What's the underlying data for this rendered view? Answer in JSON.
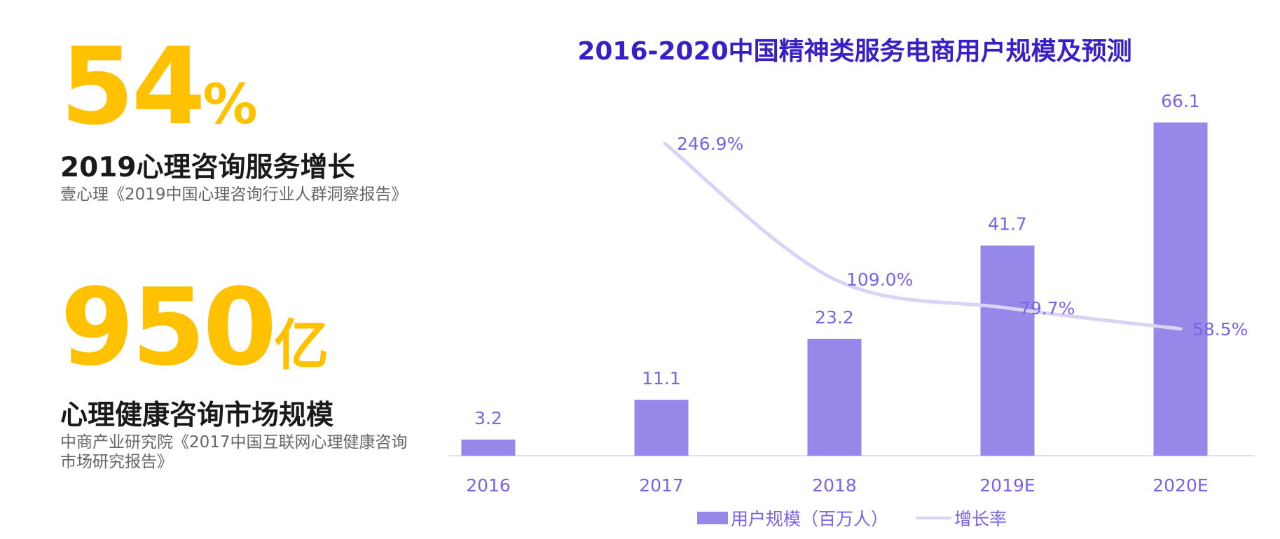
{
  "stats": [
    {
      "value": "54",
      "unit": "%",
      "title": "2019心理咨询服务增长",
      "source": "壹心理《2019中国心理咨询行业人群洞察报告》"
    },
    {
      "value": "950",
      "unit": "亿",
      "title": "心理健康咨询市场规模",
      "source": "中商产业研究院《2017中国互联网心理健康咨询市场研究报告》"
    }
  ],
  "colors": {
    "accent": "#FFC100",
    "title": "#3a1fc6",
    "bar": "#9688E8",
    "line": "#D8D3F7",
    "label": "#7B63E6"
  },
  "chart_data": {
    "type": "bar",
    "title": "2016-2020中国精神类服务电商用户规模及预测",
    "categories": [
      "2016",
      "2017",
      "2018",
      "2019E",
      "2020E"
    ],
    "series": [
      {
        "name": "用户规模（百万人）",
        "type": "bar",
        "values": [
          3.2,
          11.1,
          23.2,
          41.7,
          66.1
        ],
        "labels": [
          "3.2",
          "11.1",
          "23.2",
          "41.7",
          "66.1"
        ]
      },
      {
        "name": "增长率",
        "type": "line",
        "values": [
          null,
          246.9,
          109.0,
          79.7,
          58.5
        ],
        "labels": [
          "",
          "246.9%",
          "109.0%",
          "79.7%",
          "58.5%"
        ]
      }
    ],
    "legend_position": "bottom",
    "grid": false
  }
}
